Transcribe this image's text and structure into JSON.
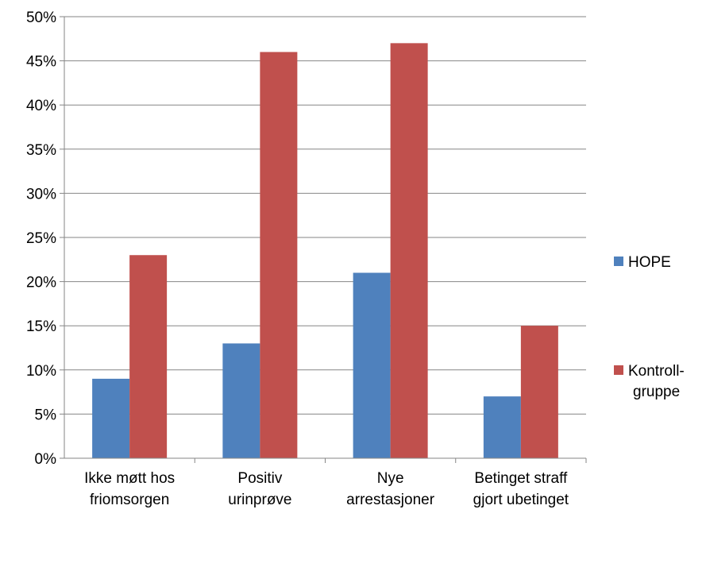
{
  "chart_data": {
    "type": "bar",
    "title": "",
    "xlabel": "",
    "ylabel": "",
    "categories": [
      [
        "Ikke møtt hos",
        "friomsorgen"
      ],
      [
        "Positiv",
        "urinprøve"
      ],
      [
        "Nye",
        "arrestasjoner"
      ],
      [
        "Betinget straff",
        "gjort ubetinget"
      ]
    ],
    "series": [
      {
        "name": [
          "HOPE"
        ],
        "color": "#4F81BD",
        "values": [
          9,
          13,
          21,
          7
        ]
      },
      {
        "name": [
          "Kontroll-",
          "gruppe"
        ],
        "color": "#C0504D",
        "values": [
          23,
          46,
          47,
          15
        ]
      }
    ],
    "ylim": [
      0,
      50
    ],
    "yticks": [
      "0%",
      "5%",
      "10%",
      "15%",
      "20%",
      "25%",
      "30%",
      "35%",
      "40%",
      "45%",
      "50%"
    ],
    "grid": true,
    "legend_position": "right"
  }
}
